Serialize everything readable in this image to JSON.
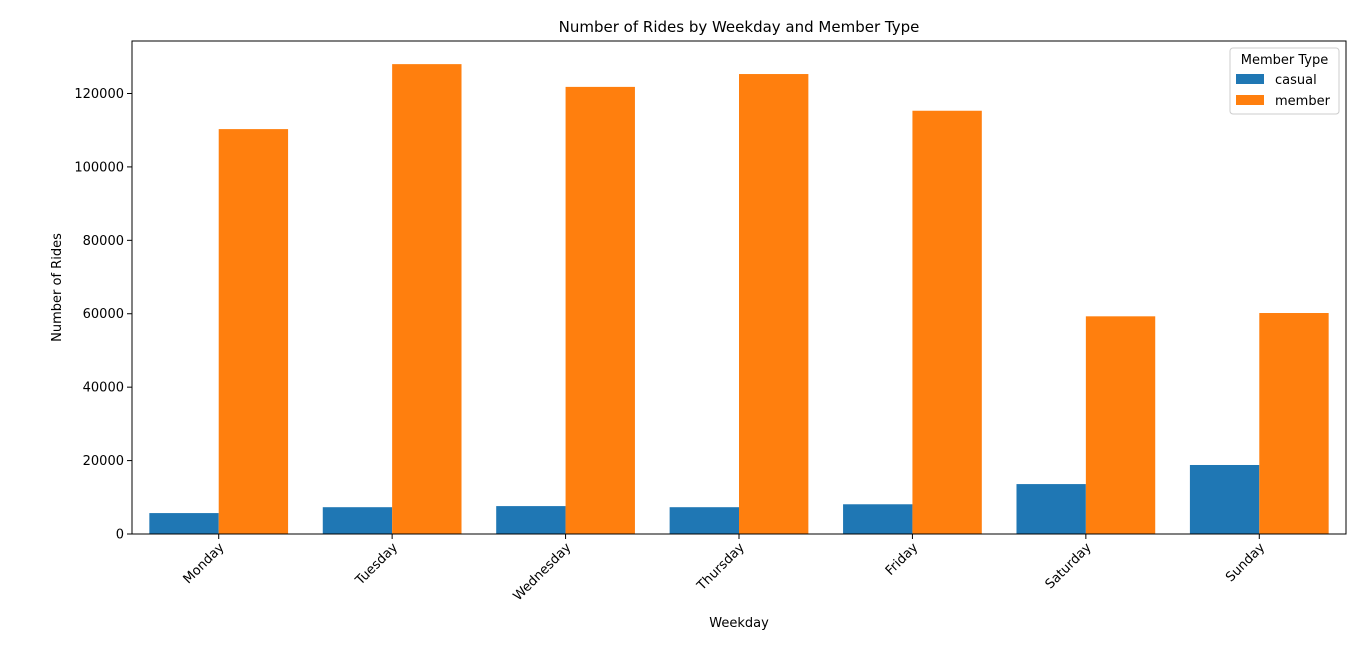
{
  "chart_data": {
    "type": "bar",
    "title": "Number of Rides by Weekday and Member Type",
    "xlabel": "Weekday",
    "ylabel": "Number of Rides",
    "categories": [
      "Monday",
      "Tuesday",
      "Wednesday",
      "Thursday",
      "Friday",
      "Saturday",
      "Sunday"
    ],
    "series": [
      {
        "name": "casual",
        "color": "#1f77b4",
        "values": [
          5700,
          7300,
          7600,
          7300,
          8100,
          13600,
          18800
        ]
      },
      {
        "name": "member",
        "color": "#ff7f0e",
        "values": [
          110300,
          128000,
          121800,
          125300,
          115300,
          59300,
          60200
        ]
      }
    ],
    "ylim": [
      0,
      134300
    ],
    "yticks": [
      0,
      20000,
      40000,
      60000,
      80000,
      100000,
      120000
    ],
    "ytick_labels": [
      "0",
      "20000",
      "40000",
      "60000",
      "80000",
      "100000",
      "120000"
    ],
    "x_tick_rotation_deg": 45,
    "grid": false,
    "legend": {
      "title": "Member Type",
      "placement": "top-right"
    }
  }
}
